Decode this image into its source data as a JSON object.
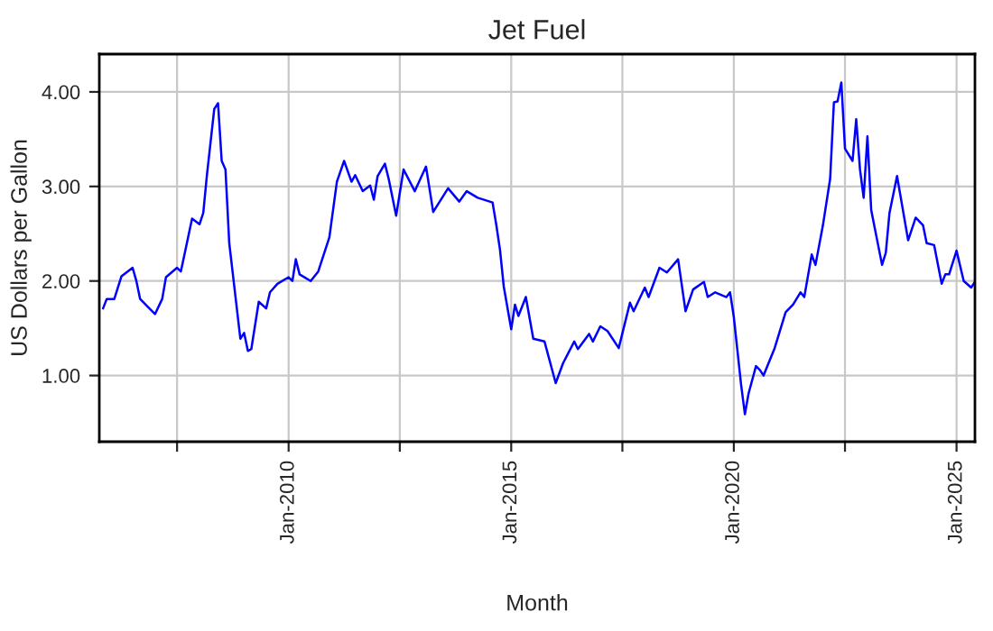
{
  "chart_data": {
    "type": "line",
    "title": "Jet Fuel",
    "xlabel": "Month",
    "ylabel": "US Dollars per Gallon",
    "x": [
      "2005-11",
      "2005-12",
      "2006-02",
      "2006-04",
      "2006-07",
      "2006-08",
      "2006-09",
      "2006-11",
      "2007-01",
      "2007-03",
      "2007-04",
      "2007-07",
      "2007-08",
      "2007-11",
      "2008-01",
      "2008-02",
      "2008-03",
      "2008-05",
      "2008-06",
      "2008-07",
      "2008-08",
      "2008-09",
      "2008-12",
      "2009-01",
      "2009-02",
      "2009-03",
      "2009-05",
      "2009-07",
      "2009-08",
      "2009-10",
      "2010-01",
      "2010-02",
      "2010-03",
      "2010-04",
      "2010-07",
      "2010-09",
      "2010-12",
      "2011-02",
      "2011-04",
      "2011-06",
      "2011-07",
      "2011-09",
      "2011-11",
      "2011-12",
      "2012-01",
      "2012-03",
      "2012-04",
      "2012-06",
      "2012-08",
      "2012-11",
      "2013-02",
      "2013-04",
      "2013-08",
      "2013-11",
      "2014-01",
      "2014-04",
      "2014-08",
      "2014-09",
      "2014-10",
      "2014-11",
      "2015-01",
      "2015-02",
      "2015-03",
      "2015-05",
      "2015-07",
      "2015-10",
      "2016-01",
      "2016-03",
      "2016-06",
      "2016-07",
      "2016-10",
      "2016-11",
      "2017-01",
      "2017-03",
      "2017-06",
      "2017-09",
      "2017-10",
      "2018-01",
      "2018-02",
      "2018-05",
      "2018-07",
      "2018-10",
      "2018-12",
      "2019-02",
      "2019-05",
      "2019-06",
      "2019-08",
      "2019-11",
      "2019-12",
      "2020-01",
      "2020-03",
      "2020-04",
      "2020-05",
      "2020-07",
      "2020-08",
      "2020-09",
      "2020-12",
      "2021-03",
      "2021-05",
      "2021-07",
      "2021-08",
      "2021-10",
      "2021-11",
      "2022-01",
      "2022-03",
      "2022-04",
      "2022-05",
      "2022-06",
      "2022-07",
      "2022-09",
      "2022-10",
      "2022-11",
      "2022-12",
      "2023-01",
      "2023-02",
      "2023-05",
      "2023-06",
      "2023-07",
      "2023-09",
      "2023-12",
      "2024-02",
      "2024-04",
      "2024-05",
      "2024-07",
      "2024-09",
      "2024-10",
      "2024-11",
      "2025-01",
      "2025-03",
      "2025-05",
      "2025-06"
    ],
    "series": [
      {
        "color": "#0000ff",
        "values": [
          1.71,
          1.81,
          1.81,
          2.05,
          2.14,
          2.0,
          1.81,
          1.73,
          1.65,
          1.81,
          2.04,
          2.14,
          2.1,
          2.66,
          2.6,
          2.72,
          3.11,
          3.82,
          3.88,
          3.27,
          3.18,
          2.4,
          1.39,
          1.45,
          1.26,
          1.28,
          1.78,
          1.71,
          1.88,
          1.97,
          2.04,
          2.0,
          2.23,
          2.07,
          2.0,
          2.1,
          2.46,
          3.05,
          3.27,
          3.05,
          3.12,
          2.95,
          3.01,
          2.86,
          3.11,
          3.24,
          3.08,
          2.69,
          3.18,
          2.95,
          3.21,
          2.73,
          2.98,
          2.84,
          2.95,
          2.88,
          2.83,
          2.59,
          2.33,
          1.94,
          1.49,
          1.75,
          1.63,
          1.83,
          1.39,
          1.36,
          0.92,
          1.13,
          1.36,
          1.28,
          1.44,
          1.36,
          1.52,
          1.47,
          1.29,
          1.77,
          1.68,
          1.93,
          1.83,
          2.14,
          2.09,
          2.23,
          1.68,
          1.91,
          1.99,
          1.83,
          1.88,
          1.83,
          1.88,
          1.62,
          0.9,
          0.59,
          0.81,
          1.1,
          1.06,
          1.0,
          1.29,
          1.67,
          1.75,
          1.88,
          1.83,
          2.28,
          2.17,
          2.59,
          3.08,
          3.89,
          3.9,
          4.1,
          3.4,
          3.27,
          3.71,
          3.18,
          2.88,
          3.53,
          2.75,
          2.17,
          2.3,
          2.72,
          3.11,
          2.43,
          2.67,
          2.59,
          2.4,
          2.38,
          1.97,
          2.07,
          2.07,
          2.32,
          2.0,
          1.93,
          1.99
        ]
      }
    ],
    "xlim": [
      "2005-10",
      "2025-06"
    ],
    "xticks": [
      {
        "value": "2007-07",
        "label": null
      },
      {
        "value": "2010-01",
        "label": "Jan-2010"
      },
      {
        "value": "2012-07",
        "label": null
      },
      {
        "value": "2015-01",
        "label": "Jan-2015"
      },
      {
        "value": "2017-07",
        "label": null
      },
      {
        "value": "2020-01",
        "label": "Jan-2020"
      },
      {
        "value": "2022-07",
        "label": null
      },
      {
        "value": "2025-01",
        "label": "Jan-2025"
      }
    ],
    "ylim": [
      0.3,
      4.4
    ],
    "yticks": [
      {
        "value": 1,
        "label": "1.00"
      },
      {
        "value": 2,
        "label": "2.00"
      },
      {
        "value": 3,
        "label": "3.00"
      },
      {
        "value": 4,
        "label": "4.00"
      }
    ],
    "grid": true,
    "marker": "none",
    "line_style": "solid",
    "legend": false
  }
}
